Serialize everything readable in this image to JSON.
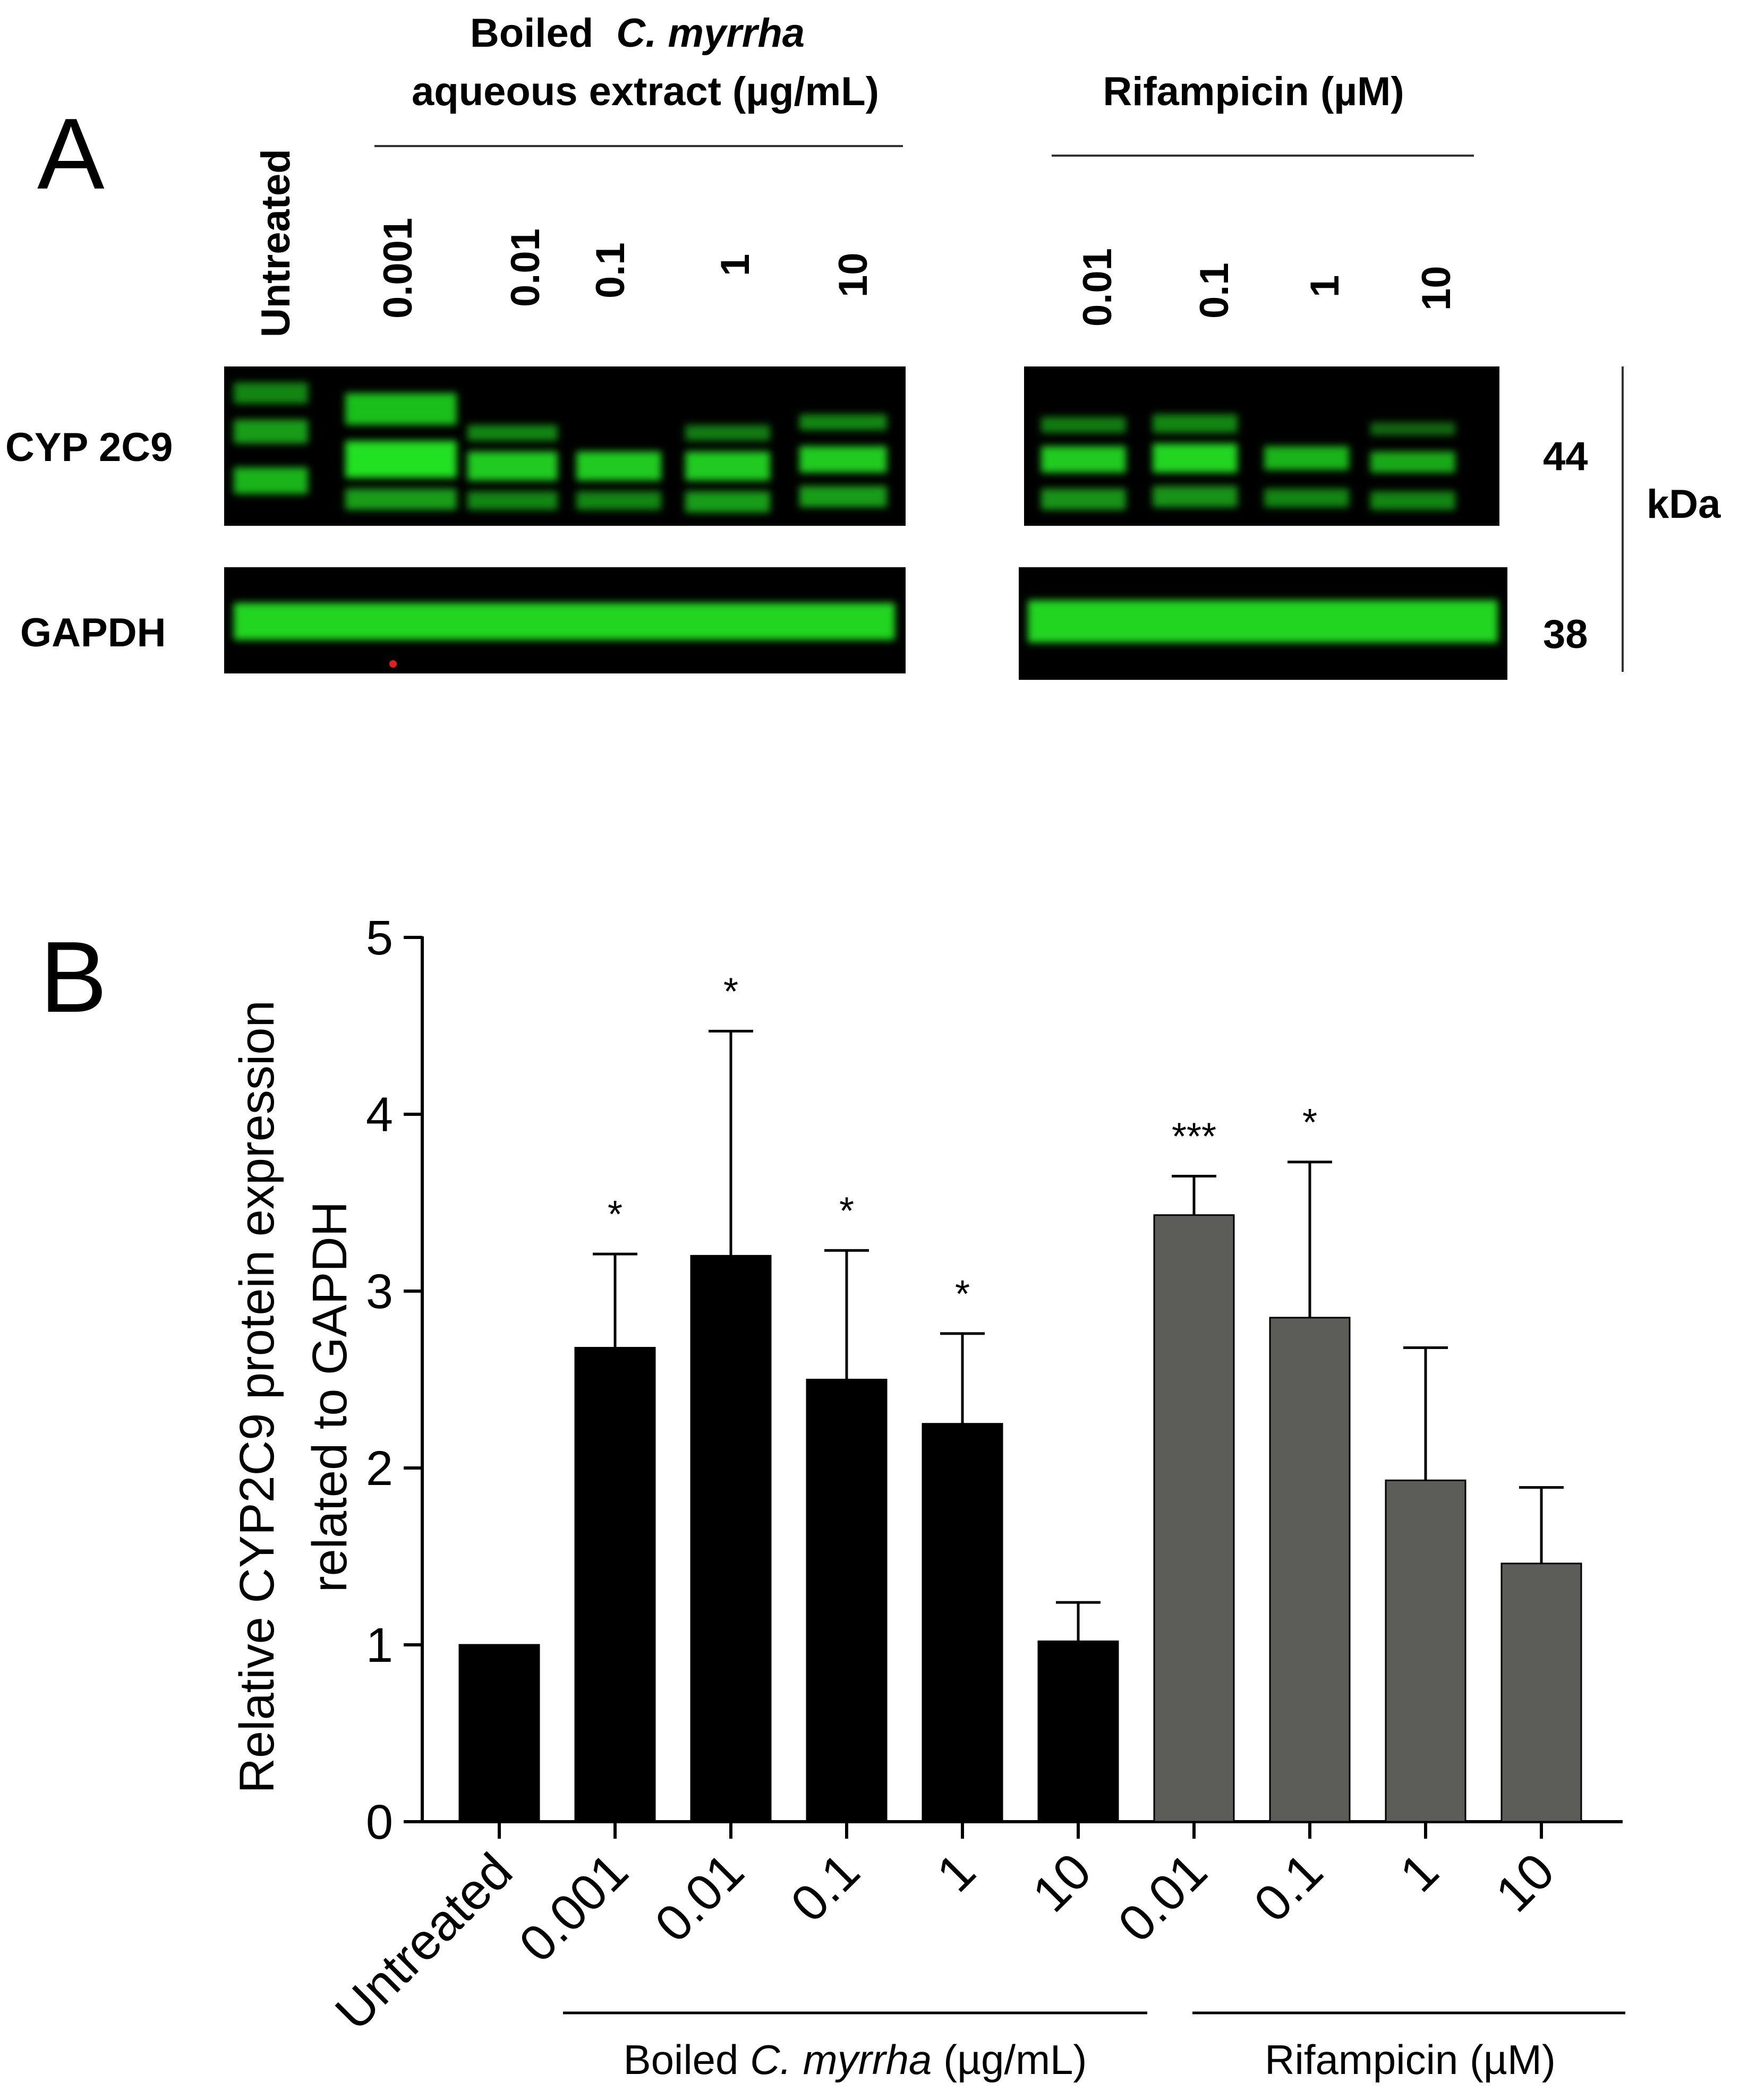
{
  "panel_a": {
    "letter": "A",
    "groups": {
      "cm_line1_prefix": "Boiled",
      "cm_line1_italic": "C. myrrha",
      "cm_line2": "aqueous extract (µg/mL)",
      "rif": "Rifampicin  (µM)"
    },
    "lanes_left": [
      "Untreated",
      "0.001",
      "0.01",
      "0.1",
      "1",
      "10"
    ],
    "lanes_right": [
      "0.01",
      "0.1",
      "1",
      "10"
    ],
    "row_labels": [
      "CYP 2C9",
      "GAPDH"
    ],
    "markers": [
      "44",
      "38"
    ],
    "unit": "kDa",
    "colors": {
      "blot_bg": "#000000",
      "band": "#22e022"
    }
  },
  "panel_b": {
    "letter": "B",
    "group_labels": {
      "cm_prefix": "Boiled ",
      "cm_italic": "C. myrrha",
      "cm_suffix": " (µg/mL)",
      "rif": "Rifampicin (µM)"
    },
    "colors": {
      "cm": "#000000",
      "rif": "#5c5d58"
    }
  },
  "chart_data": {
    "type": "bar",
    "categories": [
      "Untreated",
      "0.001",
      "0.01",
      "0.1",
      "1",
      "10",
      "0.01",
      "0.1",
      "1",
      "10"
    ],
    "values": [
      1.0,
      2.68,
      3.2,
      2.5,
      2.25,
      1.02,
      3.43,
      2.85,
      1.93,
      1.46
    ],
    "errors": [
      0.0,
      0.53,
      1.27,
      0.73,
      0.51,
      0.22,
      0.22,
      0.88,
      0.75,
      0.43
    ],
    "significance": [
      "",
      "*",
      "*",
      "*",
      "*",
      "",
      "***",
      "*",
      "",
      ""
    ],
    "bar_group": [
      "cm",
      "cm",
      "cm",
      "cm",
      "cm",
      "cm",
      "rif",
      "rif",
      "rif",
      "rif"
    ],
    "ylabel_line1": "Relative CYP2C9 protein expression",
    "ylabel_line2": "related to GAPDH",
    "xlabel": "",
    "ylim": [
      0,
      5
    ],
    "yticks": [
      "0",
      "1",
      "2",
      "3",
      "4",
      "5"
    ],
    "grid": false
  }
}
